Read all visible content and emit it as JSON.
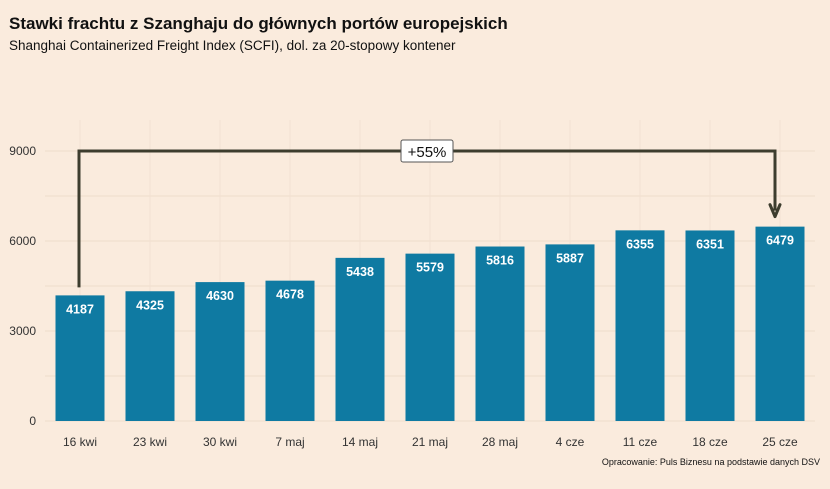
{
  "title": "Stawki frachtu z Szanghaju do głównych portów europejskich",
  "subtitle": "Shanghai Containerized Freight Index (SCFI), dol. za 20-stopowy kontener",
  "source": "Opracowanie: Puls Biznesu na podstawie danych DSV",
  "colors": {
    "background": "#faebdd",
    "bar": "#0f7aa2",
    "annotation": "#3d3d2e"
  },
  "chart_data": {
    "type": "bar",
    "title": "Stawki frachtu z Szanghaju do głównych portów europejskich",
    "subtitle": "Shanghai Containerized Freight Index (SCFI), dol. za 20-stopowy kontener",
    "categories": [
      "16 kwi",
      "23 kwi",
      "30 kwi",
      "7 maj",
      "14 maj",
      "21 maj",
      "28 maj",
      "4 cze",
      "11 cze",
      "18 cze",
      "25 cze"
    ],
    "values": [
      4187,
      4325,
      4630,
      4678,
      5438,
      5579,
      5816,
      5887,
      6355,
      6351,
      6479
    ],
    "yticks": [
      0,
      3000,
      6000,
      9000
    ],
    "ylim": [
      0,
      10000
    ],
    "grid": true,
    "annotation": {
      "text": "+55%",
      "from": "16 kwi",
      "to": "25 cze",
      "level": 9000
    }
  }
}
